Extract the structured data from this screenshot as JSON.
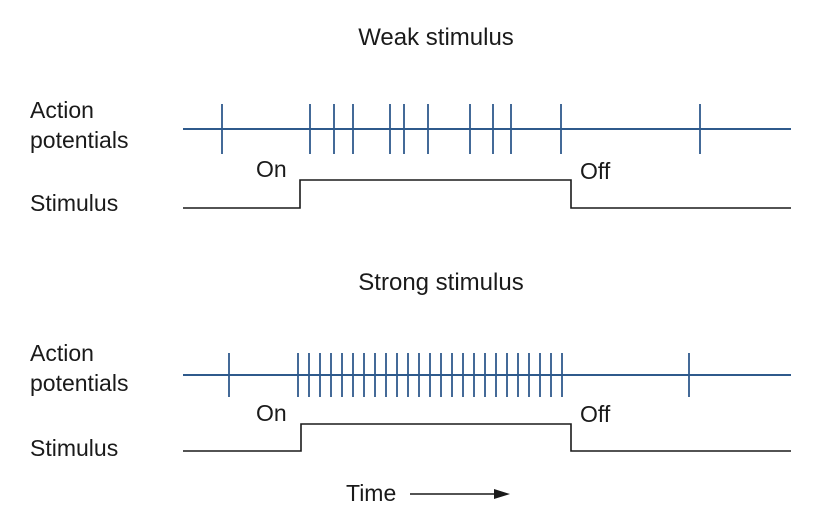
{
  "panels": [
    {
      "title": "Weak stimulus",
      "row_label_ap_line1": "Action",
      "row_label_ap_line2": "potentials",
      "row_label_stimulus": "Stimulus",
      "on_label": "On",
      "off_label": "Off",
      "stimulus_on": 300,
      "stimulus_off": 571,
      "spikes": [
        222,
        310,
        334,
        353,
        390,
        404,
        428,
        470,
        493,
        511,
        561,
        700
      ]
    },
    {
      "title": "Strong stimulus",
      "row_label_ap_line1": "Action",
      "row_label_ap_line2": "potentials",
      "row_label_stimulus": "Stimulus",
      "on_label": "On",
      "off_label": "Off",
      "stimulus_on": 301,
      "stimulus_off": 571,
      "spikes": [
        229,
        298,
        309,
        320,
        331,
        342,
        353,
        364,
        375,
        386,
        397,
        408,
        419,
        430,
        441,
        452,
        463,
        474,
        485,
        496,
        507,
        518,
        529,
        540,
        551,
        562,
        689
      ]
    }
  ],
  "time_label": "Time",
  "colors": {
    "spike_train": "#2f5a8c",
    "stimulus": "#1a1a1a",
    "text": "#1a1a1a"
  }
}
